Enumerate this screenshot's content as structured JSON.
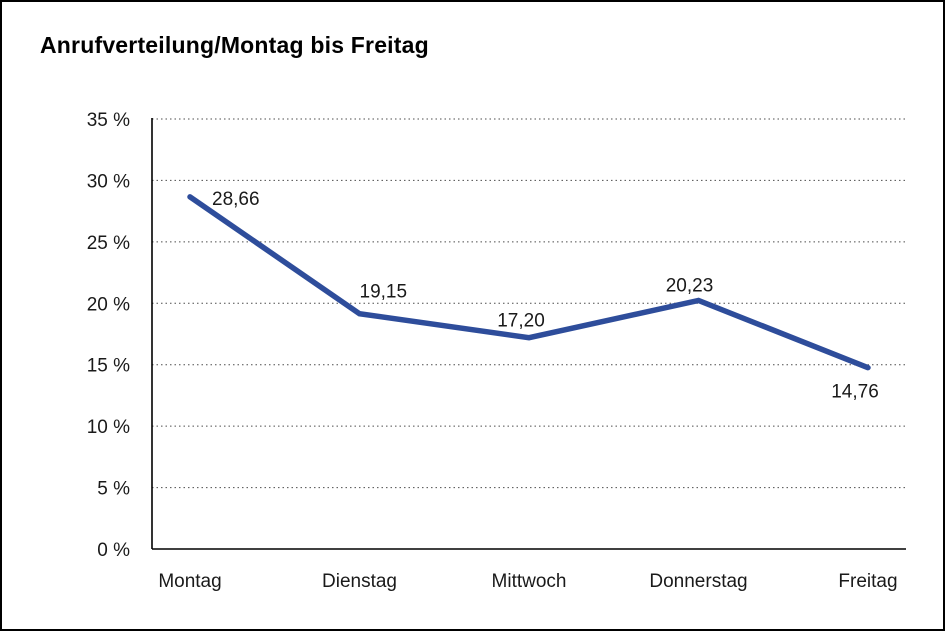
{
  "chart_data": {
    "type": "line",
    "title": "Anrufverteilung/Montag bis Freitag",
    "categories": [
      "Montag",
      "Dienstag",
      "Mittwoch",
      "Donnerstag",
      "Freitag"
    ],
    "series": [
      {
        "name": "Anrufverteilung",
        "values": [
          28.66,
          19.15,
          17.2,
          20.23,
          14.76
        ]
      }
    ],
    "value_labels": [
      "28,66",
      "19,15",
      "17,20",
      "20,23",
      "14,76"
    ],
    "xlabel": "",
    "ylabel": "",
    "ylim": [
      0,
      35
    ],
    "y_ticks": [
      0,
      5,
      10,
      15,
      20,
      25,
      30,
      35
    ],
    "y_tick_labels": [
      "0 %",
      "5 %",
      "10 %",
      "15 %",
      "20 %",
      "25 %",
      "30 %",
      "35 %"
    ],
    "grid": "horizontal-dotted",
    "legend_position": "none",
    "line_color": "#2E4D9B",
    "background_color": "#FFFFFF",
    "border_color": "#000000"
  }
}
